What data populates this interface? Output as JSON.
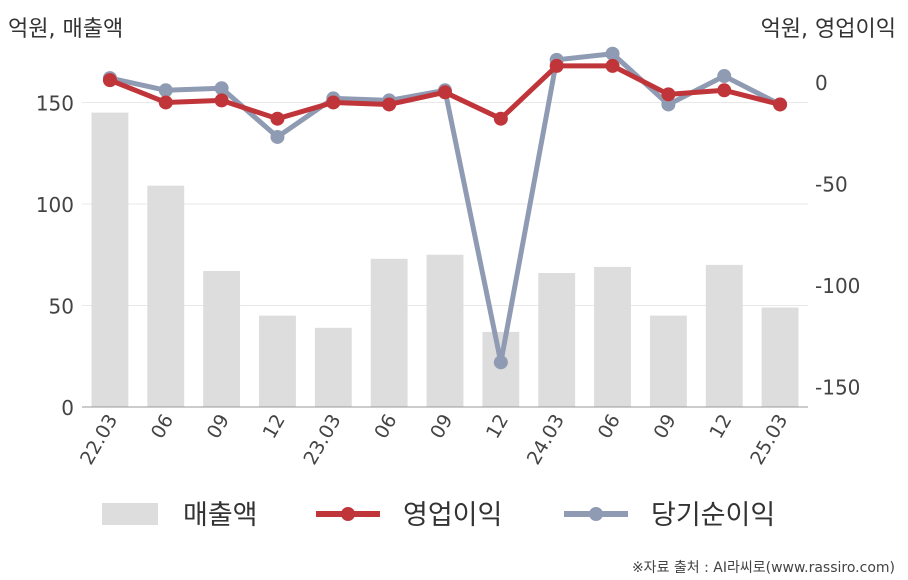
{
  "chart_data": {
    "type": "bar+line",
    "left_unit": "억원, 매출액",
    "right_unit": "억원, 영업이익",
    "categories": [
      "22.03",
      "06",
      "09",
      "12",
      "23.03",
      "06",
      "09",
      "12",
      "24.03",
      "06",
      "09",
      "12",
      "25.03"
    ],
    "left_axis": {
      "ylim": [
        0,
        165
      ],
      "ticks": [
        0,
        50,
        100,
        150
      ]
    },
    "right_axis": {
      "ylim": [
        -160,
        5
      ],
      "ticks": [
        "0",
        "-50",
        "-100",
        "-150"
      ]
    },
    "grid": true,
    "series": [
      {
        "name": "매출액",
        "kind": "bar",
        "axis": "left",
        "color": "#dddddd",
        "values": [
          145,
          109,
          67,
          45,
          39,
          73,
          75,
          37,
          66,
          69,
          45,
          70,
          49
        ]
      },
      {
        "name": "영업이익",
        "kind": "line",
        "axis": "right",
        "color": "#c0353a",
        "values": [
          1,
          -10,
          -9,
          -18,
          -10,
          -11,
          -5,
          -18,
          8,
          8,
          -6,
          -4,
          -11
        ]
      },
      {
        "name": "당기순이익",
        "kind": "line",
        "axis": "right",
        "color": "#8f9bb3",
        "values": [
          2,
          -4,
          -3,
          -27,
          -8,
          -9,
          -4,
          -138,
          11,
          14,
          -11,
          3,
          -11
        ]
      }
    ],
    "legend_position": "bottom"
  },
  "source_text": "※자료 출처 : AI라씨로(www.rassiro.com)"
}
